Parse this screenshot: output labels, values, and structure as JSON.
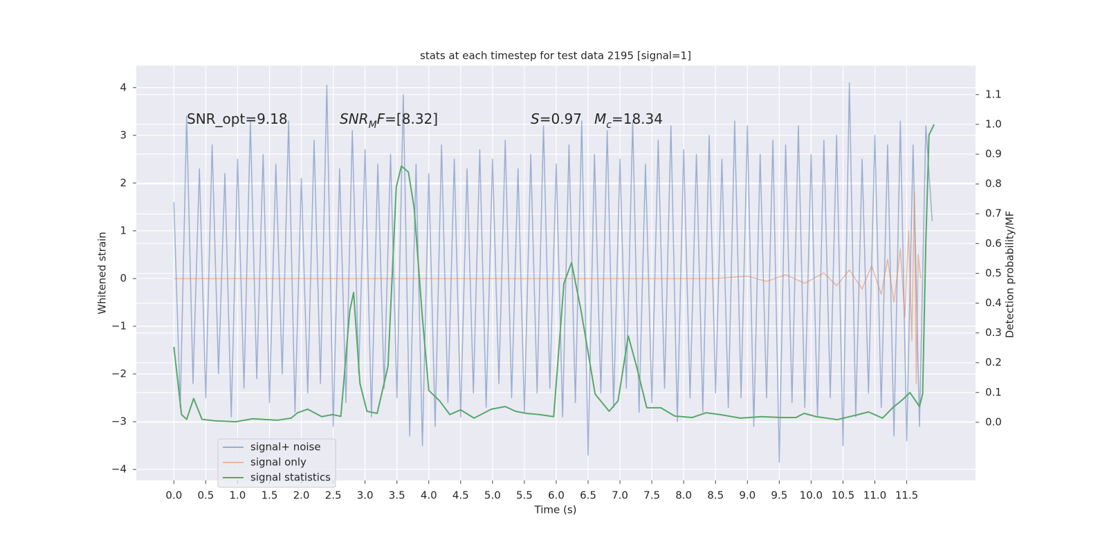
{
  "chart_data": {
    "type": "line",
    "title": "stats at each timestep for test data 2195 [signal=1]",
    "xlabel": "Time (s)",
    "ylabel": "Whitened strain",
    "y2label": "Detection probability/MF",
    "xlim": [
      -0.59,
      12.58
    ],
    "ylim": [
      -4.23,
      4.46
    ],
    "y2lim": [
      -0.195,
      1.197
    ],
    "xticks": [
      {
        "value": 0,
        "label": "0.0"
      },
      0.5,
      {
        "value": 1,
        "label": "1.0"
      },
      1.5,
      {
        "value": 2,
        "label": "2.0"
      },
      2.5,
      {
        "value": 3,
        "label": "3.0"
      },
      3.5,
      {
        "value": 4,
        "label": "4.0"
      },
      4.5,
      {
        "value": 5,
        "label": "5.0"
      },
      5.5,
      {
        "value": 6,
        "label": "6.0"
      },
      6.5,
      {
        "value": 7,
        "label": "7.0"
      },
      7.5,
      {
        "value": 8,
        "label": "8.0"
      },
      8.5,
      {
        "value": 9,
        "label": "9.0"
      },
      9.5,
      {
        "value": 10,
        "label": "10.0"
      },
      10.5,
      {
        "value": 11,
        "label": "11.0"
      },
      11.5
    ],
    "yticks": [
      {
        "value": -4,
        "label": "−4"
      },
      {
        "value": -3,
        "label": "−3"
      },
      {
        "value": -2,
        "label": "−2"
      },
      {
        "value": -1,
        "label": "−1"
      },
      0,
      1,
      2,
      3,
      4
    ],
    "y2ticks": [
      {
        "value": 0,
        "label": "0.0"
      },
      0.1,
      0.2,
      0.3,
      0.4,
      0.5,
      0.6,
      0.7,
      0.8,
      0.9,
      {
        "value": 1,
        "label": "1.0"
      },
      1.1
    ],
    "grid": true,
    "legend": "lower left",
    "annotations": [
      [
        {
          "text": "SNR_opt=9.18"
        }
      ],
      [
        {
          "text": "SNR",
          "style": "italic"
        },
        {
          "text": "M",
          "style": "sub"
        },
        {
          "text": "F",
          "style": "italic"
        },
        {
          "text": "=[8.32]"
        }
      ],
      [
        {
          "text": "S",
          "style": "italic"
        },
        {
          "text": "=0.97"
        }
      ],
      [
        {
          "text": "M",
          "style": "italic"
        },
        {
          "text": "c",
          "style": "sub"
        },
        {
          "text": "=18.34"
        }
      ]
    ],
    "series": [
      {
        "name": "signal+ noise",
        "color": "#4c72b0",
        "alpha": 0.5,
        "x": [
          0,
          0.1,
          0.2,
          0.3,
          0.4,
          0.5,
          0.6,
          0.7,
          0.8,
          0.9,
          1,
          1.1,
          1.2,
          1.3,
          1.4,
          1.5,
          1.6,
          1.7,
          1.8,
          1.9,
          2,
          2.1,
          2.2,
          2.3,
          2.4,
          2.5,
          2.6,
          2.7,
          2.8,
          2.9,
          3,
          3.1,
          3.2,
          3.3,
          3.4,
          3.5,
          3.6,
          3.7,
          3.8,
          3.9,
          4,
          4.1,
          4.2,
          4.3,
          4.4,
          4.5,
          4.6,
          4.7,
          4.8,
          4.9,
          5,
          5.1,
          5.2,
          5.3,
          5.4,
          5.5,
          5.6,
          5.7,
          5.8,
          5.9,
          6,
          6.1,
          6.2,
          6.3,
          6.4,
          6.5,
          6.6,
          6.7,
          6.8,
          6.9,
          7,
          7.1,
          7.2,
          7.3,
          7.4,
          7.5,
          7.6,
          7.7,
          7.8,
          7.9,
          8,
          8.1,
          8.2,
          8.3,
          8.4,
          8.5,
          8.6,
          8.7,
          8.8,
          8.9,
          9,
          9.1,
          9.2,
          9.3,
          9.4,
          9.5,
          9.6,
          9.7,
          9.8,
          9.9,
          10,
          10.1,
          10.2,
          10.3,
          10.4,
          10.5,
          10.6,
          10.7,
          10.8,
          10.9,
          11,
          11.1,
          11.2,
          11.3,
          11.4,
          11.5,
          11.6,
          11.7,
          11.8,
          11.9
        ],
        "values": [
          1.6,
          -2.7,
          3.4,
          -2.2,
          2.3,
          -2.5,
          2.8,
          -2.0,
          2.2,
          -2.9,
          2.5,
          -2.3,
          3.3,
          -2.1,
          2.6,
          -2.6,
          2.4,
          -2.0,
          3.3,
          -2.8,
          2.1,
          -2.4,
          2.9,
          -2.2,
          4.05,
          -3.1,
          2.3,
          -2.6,
          3.1,
          -2.0,
          2.7,
          -2.9,
          2.4,
          -2.3,
          2.6,
          -2.5,
          3.85,
          -3.3,
          2.4,
          -3.5,
          2.2,
          -3.1,
          2.8,
          -2.6,
          2.5,
          -2.9,
          2.3,
          -2.4,
          2.7,
          -2.7,
          2.5,
          -2.2,
          2.9,
          -2.5,
          2.3,
          -2.8,
          2.6,
          -2.4,
          3.2,
          -2.3,
          2.4,
          -2.9,
          2.8,
          -2.6,
          3.3,
          -3.7,
          2.6,
          -2.4,
          3.1,
          -2.7,
          2.5,
          -2.3,
          3.3,
          -2.8,
          2.4,
          -2.6,
          2.9,
          -2.3,
          3.2,
          -3.0,
          2.7,
          -2.5,
          2.6,
          -2.8,
          3.0,
          -2.4,
          2.5,
          -2.7,
          3.3,
          -2.5,
          3.2,
          -3.1,
          2.6,
          -2.5,
          2.9,
          -3.85,
          2.8,
          -2.6,
          3.2,
          -2.7,
          2.6,
          -2.9,
          2.9,
          -2.5,
          3.0,
          -3.5,
          4.1,
          -2.9,
          2.5,
          -2.4,
          3.0,
          -2.7,
          2.8,
          -3.3,
          3.3,
          -3.4,
          2.8,
          -3.1,
          3.2,
          1.2
        ]
      },
      {
        "name": "signal only",
        "color": "#dd8452",
        "alpha": 0.5,
        "x": [
          0,
          8.5,
          9.0,
          9.3,
          9.6,
          9.9,
          10.2,
          10.4,
          10.6,
          10.8,
          10.95,
          11.1,
          11.2,
          11.3,
          11.4,
          11.47,
          11.53,
          11.58,
          11.62,
          11.65,
          11.68,
          11.72
        ],
        "values": [
          0,
          0,
          0.05,
          -0.06,
          0.08,
          -0.1,
          0.12,
          -0.15,
          0.18,
          -0.22,
          0.27,
          -0.33,
          0.4,
          -0.5,
          0.62,
          -0.8,
          1.0,
          -1.3,
          1.8,
          -2.2,
          0.5,
          0
        ]
      },
      {
        "name": "signal statistics",
        "color": "#55a868",
        "alpha": 1,
        "axis": "y2",
        "x": [
          0,
          0.12,
          0.2,
          0.31,
          0.44,
          0.64,
          0.97,
          1.24,
          1.62,
          1.84,
          1.94,
          2.1,
          2.32,
          2.49,
          2.62,
          2.76,
          2.82,
          2.92,
          3.03,
          3.19,
          3.36,
          3.49,
          3.57,
          3.68,
          3.77,
          3.9,
          4.0,
          4.17,
          4.33,
          4.5,
          4.71,
          4.98,
          5.2,
          5.36,
          5.53,
          5.74,
          5.96,
          6.12,
          6.24,
          6.39,
          6.61,
          6.83,
          6.97,
          7.13,
          7.26,
          7.42,
          7.64,
          7.86,
          8.13,
          8.35,
          8.57,
          8.89,
          9.22,
          9.54,
          9.76,
          9.89,
          10.08,
          10.41,
          10.74,
          10.9,
          11.12,
          11.28,
          11.44,
          11.55,
          11.7,
          11.75,
          11.8,
          11.85,
          11.93
        ],
        "values": [
          0.253,
          0.026,
          0.01,
          0.08,
          0.01,
          0.005,
          0.002,
          0.012,
          0.007,
          0.014,
          0.032,
          0.044,
          0.019,
          0.026,
          0.02,
          0.374,
          0.436,
          0.13,
          0.037,
          0.03,
          0.188,
          0.79,
          0.86,
          0.84,
          0.72,
          0.35,
          0.107,
          0.072,
          0.026,
          0.042,
          0.014,
          0.044,
          0.053,
          0.037,
          0.03,
          0.026,
          0.019,
          0.466,
          0.536,
          0.374,
          0.095,
          0.037,
          0.072,
          0.29,
          0.188,
          0.049,
          0.049,
          0.021,
          0.016,
          0.032,
          0.026,
          0.014,
          0.019,
          0.016,
          0.016,
          0.03,
          0.019,
          0.009,
          0.026,
          0.035,
          0.014,
          0.049,
          0.077,
          0.1,
          0.053,
          0.095,
          0.606,
          0.965,
          1.0
        ]
      }
    ]
  }
}
